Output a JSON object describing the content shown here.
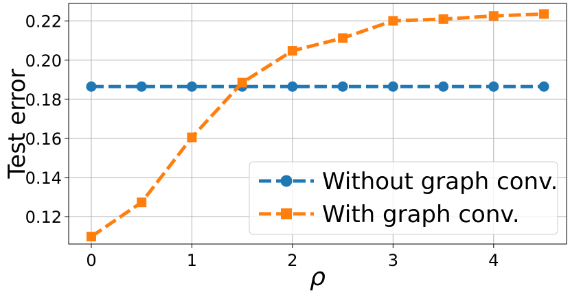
{
  "chart_data": {
    "type": "line",
    "title": "",
    "xlabel": "ρ",
    "ylabel": "Test error",
    "xlim": [
      -0.225,
      4.725
    ],
    "ylim": [
      0.106,
      0.229
    ],
    "x_ticks": [
      0,
      1,
      2,
      3,
      4
    ],
    "x_tick_labels": [
      "0",
      "1",
      "2",
      "3",
      "4"
    ],
    "y_ticks": [
      0.12,
      0.14,
      0.16,
      0.18,
      0.2,
      0.22
    ],
    "y_tick_labels": [
      "0.12",
      "0.14",
      "0.16",
      "0.18",
      "0.20",
      "0.22"
    ],
    "grid": true,
    "legend_position": "bottom-right",
    "x": [
      0,
      0.5,
      1,
      1.5,
      2,
      2.5,
      3,
      3.5,
      4,
      4.5
    ],
    "series": [
      {
        "name": "Without graph conv.",
        "values": [
          0.1865,
          0.1865,
          0.1865,
          0.1865,
          0.1865,
          0.1865,
          0.1865,
          0.1865,
          0.1865,
          0.1865
        ],
        "color": "#1f77b4",
        "marker": "circle",
        "line_style": "dashed"
      },
      {
        "name": "With graph conv.",
        "values": [
          0.1098,
          0.1273,
          0.1605,
          0.1885,
          0.2048,
          0.2113,
          0.2201,
          0.221,
          0.2226,
          0.2236
        ],
        "color": "#ff7f0e",
        "marker": "square",
        "line_style": "dashed"
      }
    ]
  }
}
